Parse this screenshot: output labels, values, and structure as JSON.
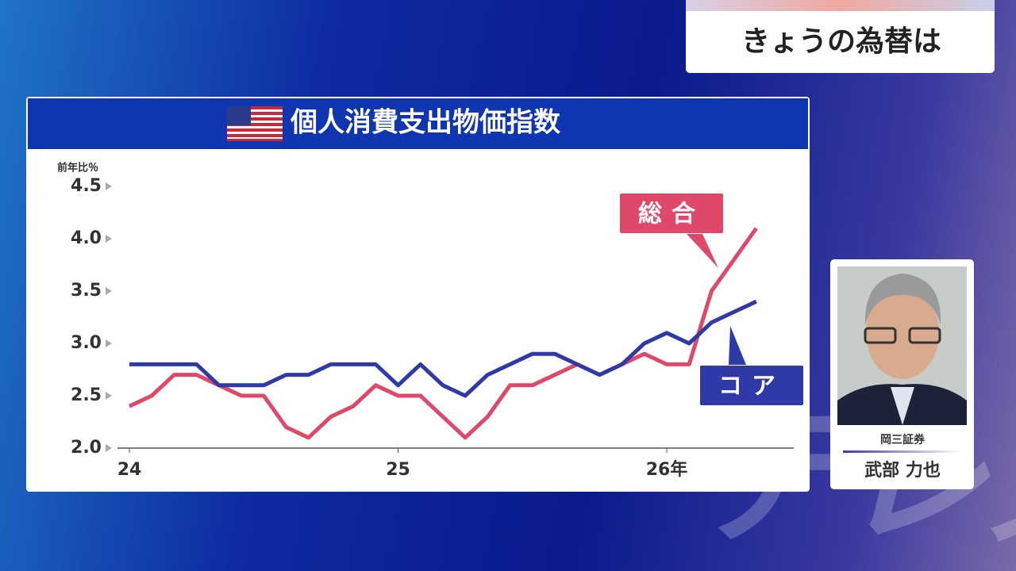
{
  "header": {
    "title": "きょうの為替は"
  },
  "watermark": "テレ東",
  "person": {
    "company": "岡三証券",
    "name": "武部 力也"
  },
  "chart_data": {
    "type": "line",
    "title": "個人消費支出物価指数",
    "y_label": "前年比％",
    "categories": [
      "24",
      null,
      null,
      null,
      null,
      null,
      null,
      null,
      null,
      null,
      null,
      null,
      "25",
      null,
      null,
      null,
      null,
      null,
      null,
      null,
      null,
      null,
      null,
      null,
      "26年",
      null,
      null,
      null,
      null
    ],
    "series": [
      {
        "name": "総合",
        "color": "#e0486a",
        "values": [
          2.4,
          2.5,
          2.7,
          2.7,
          2.6,
          2.5,
          2.5,
          2.2,
          2.1,
          2.3,
          2.4,
          2.6,
          2.5,
          2.5,
          2.3,
          2.1,
          2.3,
          2.6,
          2.6,
          2.7,
          2.8,
          2.7,
          2.8,
          2.9,
          2.8,
          2.8,
          3.5,
          3.8,
          4.1
        ]
      },
      {
        "name": "コア",
        "color": "#2f3aa8",
        "values": [
          2.8,
          2.8,
          2.8,
          2.8,
          2.6,
          2.6,
          2.6,
          2.7,
          2.7,
          2.8,
          2.8,
          2.8,
          2.6,
          2.8,
          2.6,
          2.5,
          2.7,
          2.8,
          2.9,
          2.9,
          2.8,
          2.7,
          2.8,
          3.0,
          3.1,
          3.0,
          3.2,
          3.3,
          3.4
        ]
      }
    ],
    "ylim": [
      2.0,
      4.5
    ],
    "yticks": [
      {
        "value": 2,
        "label": "2.0"
      },
      2.5,
      {
        "value": 3,
        "label": "3.0"
      },
      3.5,
      {
        "value": 4,
        "label": "4.0"
      },
      4.5
    ]
  }
}
